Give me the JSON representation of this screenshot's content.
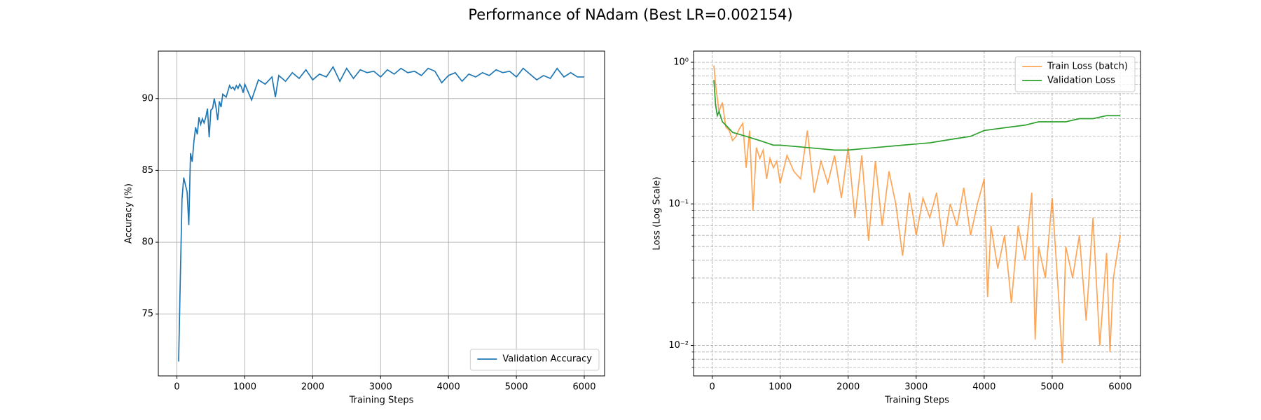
{
  "title": "Performance of NAdam (Best LR=0.002154)",
  "chart_data": [
    {
      "type": "line",
      "xlabel": "Training Steps",
      "ylabel": "Accuracy (%)",
      "xlim": [
        -274,
        6299
      ],
      "ylim": [
        70.7,
        93.3
      ],
      "xticks": [
        0,
        1000,
        2000,
        3000,
        4000,
        5000,
        6000
      ],
      "yticks": [
        75,
        80,
        85,
        90
      ],
      "grid": true,
      "grid_style": "solid",
      "legend": "lower right",
      "series": [
        {
          "name": "Validation Accuracy",
          "color": "#1f77b4",
          "x": [
            25,
            50,
            75,
            100,
            125,
            150,
            175,
            200,
            225,
            250,
            275,
            300,
            325,
            350,
            375,
            400,
            425,
            450,
            475,
            500,
            525,
            550,
            575,
            600,
            625,
            650,
            675,
            700,
            725,
            750,
            775,
            800,
            825,
            850,
            875,
            900,
            925,
            950,
            975,
            1000,
            1100,
            1200,
            1300,
            1400,
            1450,
            1500,
            1600,
            1700,
            1800,
            1900,
            2000,
            2100,
            2200,
            2300,
            2400,
            2500,
            2600,
            2700,
            2800,
            2900,
            3000,
            3100,
            3200,
            3300,
            3400,
            3500,
            3600,
            3700,
            3800,
            3900,
            4000,
            4100,
            4200,
            4300,
            4400,
            4500,
            4600,
            4700,
            4800,
            4900,
            5000,
            5100,
            5200,
            5300,
            5400,
            5500,
            5600,
            5700,
            5800,
            5900,
            6000
          ],
          "values": [
            71.7,
            77.5,
            83.0,
            84.5,
            84.0,
            83.5,
            81.2,
            86.2,
            85.6,
            87.0,
            88.0,
            87.5,
            88.7,
            88.2,
            88.6,
            88.3,
            88.7,
            89.3,
            87.3,
            89.2,
            89.3,
            90.0,
            89.4,
            88.5,
            89.8,
            89.4,
            90.3,
            90.2,
            90.1,
            90.5,
            90.9,
            90.7,
            90.8,
            90.6,
            90.9,
            90.7,
            91.0,
            90.8,
            90.4,
            91.0,
            89.9,
            91.3,
            91.0,
            91.5,
            90.1,
            91.6,
            91.2,
            91.8,
            91.4,
            92.0,
            91.3,
            91.7,
            91.5,
            92.2,
            91.2,
            92.1,
            91.4,
            92.0,
            91.8,
            91.9,
            91.5,
            92.0,
            91.7,
            92.1,
            91.8,
            91.9,
            91.6,
            92.1,
            91.9,
            91.1,
            91.6,
            91.8,
            91.2,
            91.7,
            91.5,
            91.8,
            91.6,
            92.0,
            91.8,
            91.9,
            91.5,
            92.1,
            91.7,
            91.3,
            91.6,
            91.4,
            92.1,
            91.5,
            91.8,
            91.5,
            91.5
          ]
        }
      ]
    },
    {
      "type": "line",
      "xlabel": "Training Steps",
      "ylabel": "Loss (Log Scale)",
      "yscale": "log",
      "xlim": [
        -274,
        6299
      ],
      "ylim": [
        0.0061,
        1.2
      ],
      "xticks": [
        0,
        1000,
        2000,
        3000,
        4000,
        5000,
        6000
      ],
      "yticks": [
        {
          "value": 0.01,
          "label": "10⁻²"
        },
        {
          "value": 0.1,
          "label": "10⁻¹"
        },
        {
          "value": 1,
          "label": "10⁰"
        }
      ],
      "minor_yticks": [
        0.007,
        0.008,
        0.009,
        0.02,
        0.03,
        0.04,
        0.05,
        0.06,
        0.07,
        0.08,
        0.09,
        0.2,
        0.3,
        0.4,
        0.5,
        0.6,
        0.7,
        0.8,
        0.9
      ],
      "grid": true,
      "grid_style": "dashed",
      "legend": "upper right",
      "series": [
        {
          "name": "Train Loss (batch)",
          "color": "#ff7f0e",
          "opacity": 0.7,
          "x": [
            25,
            50,
            100,
            150,
            200,
            250,
            300,
            350,
            400,
            450,
            500,
            550,
            600,
            650,
            700,
            750,
            800,
            850,
            900,
            950,
            1000,
            1100,
            1200,
            1300,
            1400,
            1500,
            1600,
            1700,
            1800,
            1900,
            2000,
            2100,
            2200,
            2300,
            2400,
            2500,
            2600,
            2700,
            2800,
            2900,
            3000,
            3100,
            3200,
            3300,
            3400,
            3500,
            3600,
            3700,
            3800,
            3900,
            4000,
            4050,
            4100,
            4200,
            4300,
            4400,
            4500,
            4600,
            4700,
            4750,
            4800,
            4900,
            5000,
            5100,
            5150,
            5200,
            5300,
            5400,
            5500,
            5600,
            5700,
            5800,
            5850,
            5900,
            6000
          ],
          "values": [
            0.95,
            0.7,
            0.45,
            0.52,
            0.35,
            0.33,
            0.28,
            0.3,
            0.34,
            0.37,
            0.18,
            0.33,
            0.09,
            0.25,
            0.21,
            0.24,
            0.15,
            0.21,
            0.18,
            0.2,
            0.14,
            0.22,
            0.17,
            0.15,
            0.33,
            0.12,
            0.2,
            0.14,
            0.22,
            0.11,
            0.25,
            0.08,
            0.22,
            0.055,
            0.2,
            0.07,
            0.17,
            0.1,
            0.043,
            0.12,
            0.06,
            0.11,
            0.08,
            0.12,
            0.05,
            0.1,
            0.07,
            0.13,
            0.06,
            0.1,
            0.15,
            0.022,
            0.07,
            0.035,
            0.06,
            0.02,
            0.07,
            0.04,
            0.12,
            0.011,
            0.05,
            0.03,
            0.11,
            0.02,
            0.0075,
            0.05,
            0.03,
            0.06,
            0.015,
            0.08,
            0.01,
            0.045,
            0.009,
            0.03,
            0.06
          ]
        },
        {
          "name": "Validation Loss",
          "color": "#2ca02c",
          "opacity": 1,
          "x": [
            25,
            50,
            75,
            100,
            150,
            200,
            300,
            400,
            500,
            600,
            700,
            800,
            900,
            1000,
            1200,
            1400,
            1600,
            1800,
            2000,
            2200,
            2400,
            2600,
            2800,
            3000,
            3200,
            3400,
            3600,
            3800,
            4000,
            4200,
            4400,
            4600,
            4800,
            5000,
            5200,
            5400,
            5600,
            5800,
            6000
          ],
          "values": [
            0.75,
            0.5,
            0.42,
            0.45,
            0.38,
            0.36,
            0.32,
            0.31,
            0.3,
            0.29,
            0.28,
            0.27,
            0.26,
            0.26,
            0.255,
            0.25,
            0.245,
            0.24,
            0.24,
            0.245,
            0.25,
            0.255,
            0.26,
            0.265,
            0.27,
            0.28,
            0.29,
            0.3,
            0.33,
            0.34,
            0.35,
            0.36,
            0.38,
            0.38,
            0.38,
            0.4,
            0.4,
            0.42,
            0.42
          ]
        }
      ]
    }
  ]
}
